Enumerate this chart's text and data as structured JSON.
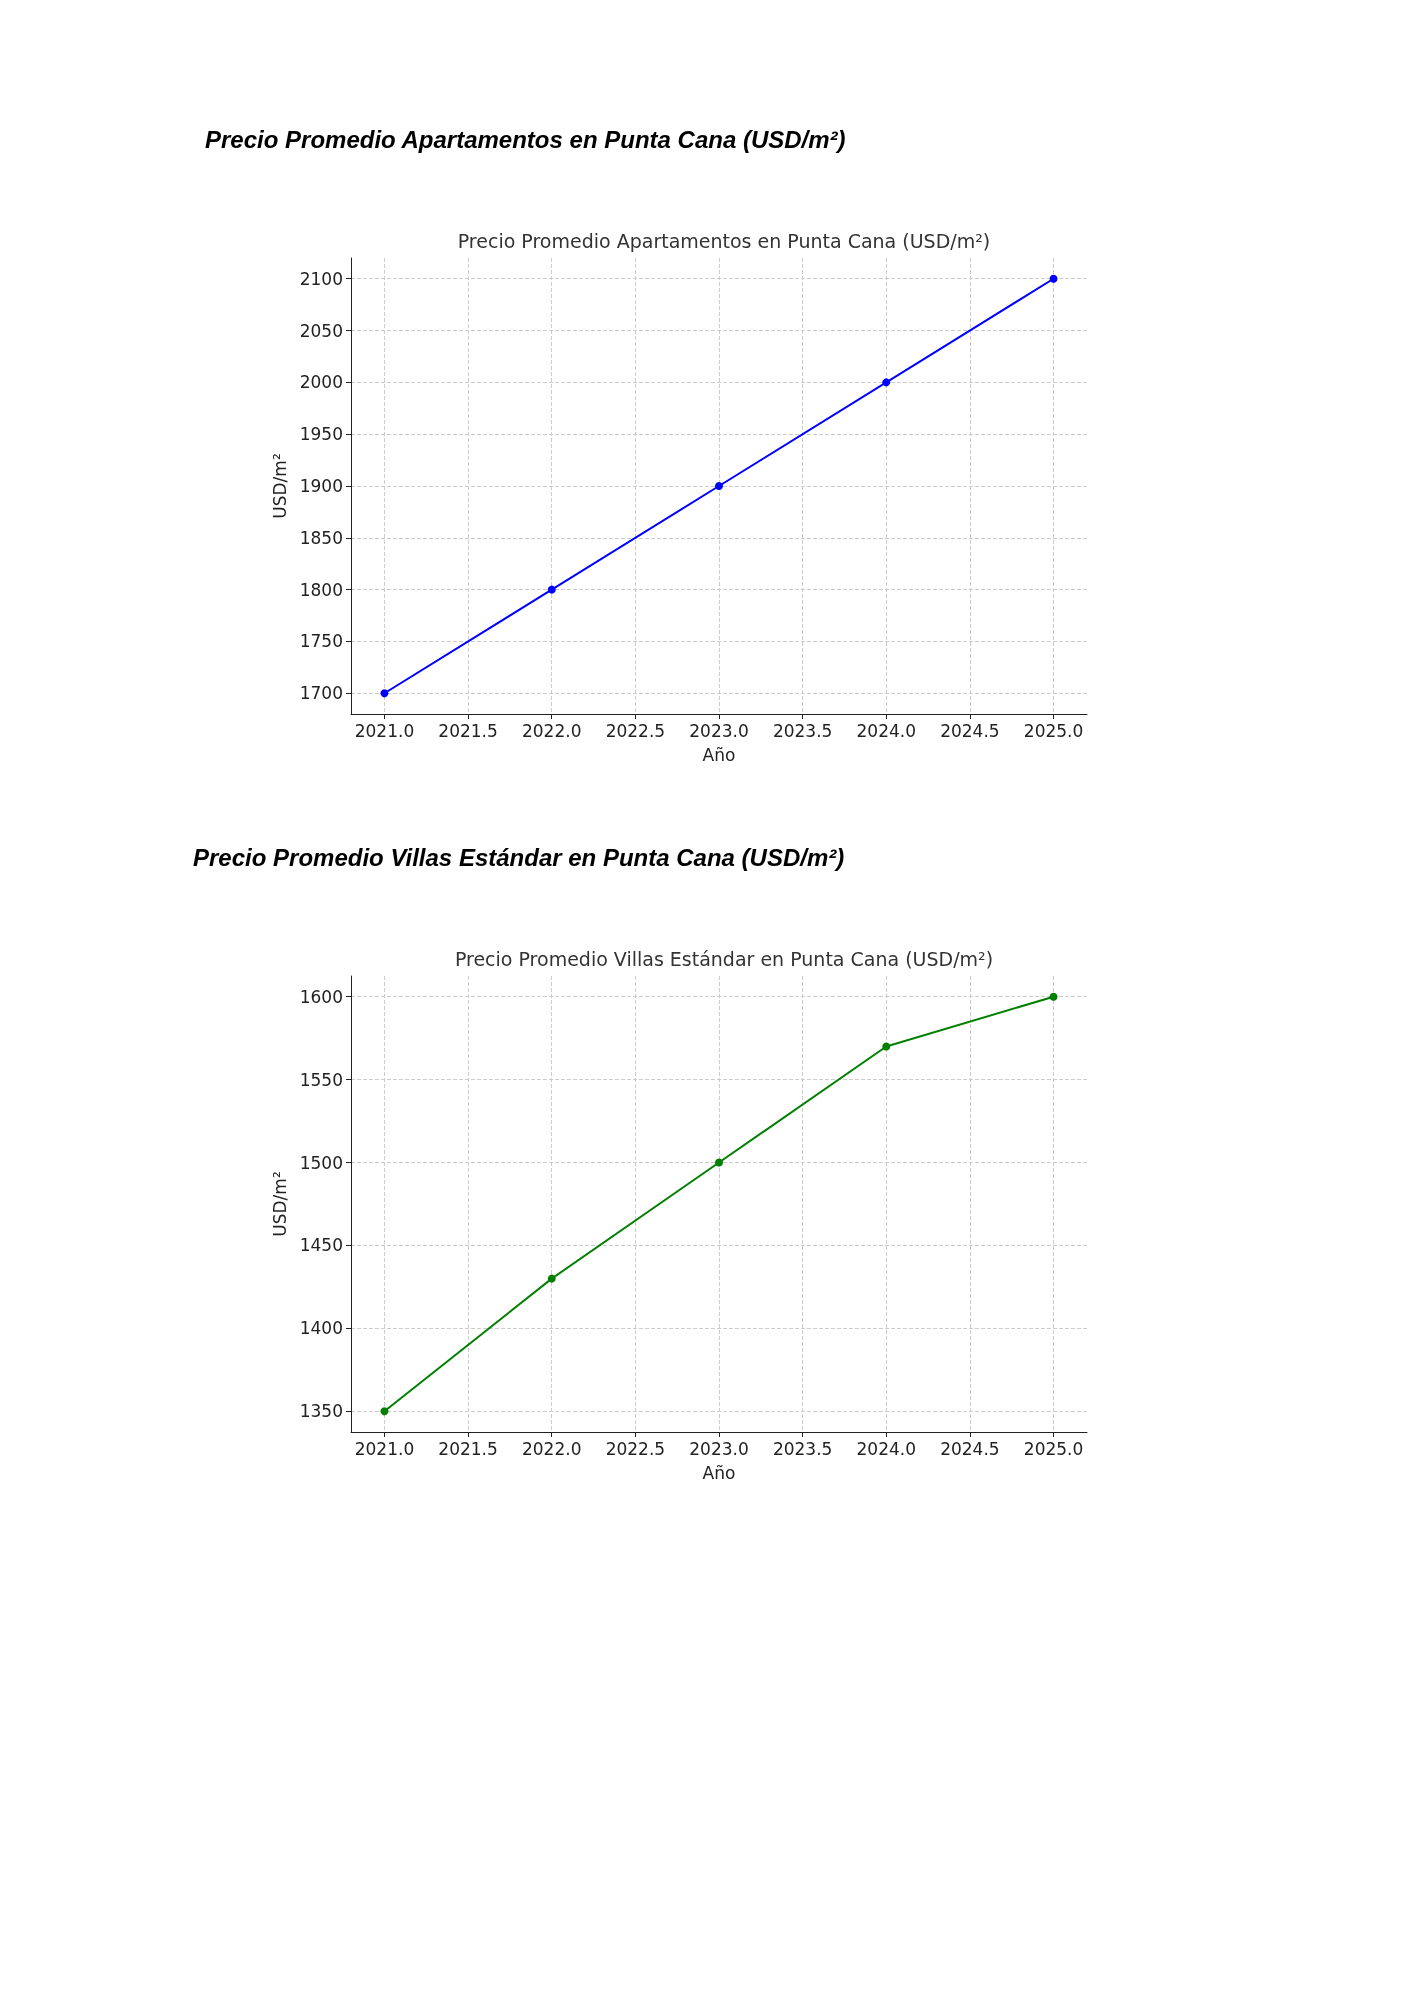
{
  "chart_data": [
    {
      "type": "line",
      "title": "Precio Promedio Apartamentos en Punta Cana (USD/m²)",
      "subtitle": "Precio Promedio Apartamentos en Punta Cana (USD/m²)",
      "xlabel": "Año",
      "ylabel": "USD/m²",
      "x": [
        2021,
        2022,
        2023,
        2024,
        2025
      ],
      "series": [
        {
          "color": "#0000ff",
          "values": [
            1700,
            1800,
            1900,
            2000,
            2100
          ]
        }
      ],
      "xlim": [
        2020.8,
        2025.2
      ],
      "xticks": [
        {
          "value": 2021,
          "label": "2021.0"
        },
        {
          "value": 2021.5,
          "label": "2021.5"
        },
        {
          "value": 2022,
          "label": "2022.0"
        },
        {
          "value": 2022.5,
          "label": "2022.5"
        },
        {
          "value": 2023,
          "label": "2023.0"
        },
        {
          "value": 2023.5,
          "label": "2023.5"
        },
        {
          "value": 2024,
          "label": "2024.0"
        },
        {
          "value": 2024.5,
          "label": "2024.5"
        },
        {
          "value": 2025,
          "label": "2025.0"
        }
      ],
      "ylim": [
        1680,
        2120
      ],
      "yticks": [
        1700,
        1750,
        1800,
        1850,
        1900,
        1950,
        2000,
        2050,
        2100
      ],
      "grid": true,
      "marker": "circle",
      "line_style": "solid"
    },
    {
      "type": "line",
      "title": "Precio Promedio Villas Estándar en Punta Cana (USD/m²)",
      "subtitle": "Precio Promedio Villas Estándar en Punta Cana (USD/m²)",
      "xlabel": "Año",
      "ylabel": "USD/m²",
      "x": [
        2021,
        2022,
        2023,
        2024,
        2025
      ],
      "series": [
        {
          "color": "#008000",
          "values": [
            1350,
            1430,
            1500,
            1570,
            1600
          ]
        }
      ],
      "xlim": [
        2020.8,
        2025.2
      ],
      "xticks": [
        {
          "value": 2021,
          "label": "2021.0"
        },
        {
          "value": 2021.5,
          "label": "2021.5"
        },
        {
          "value": 2022,
          "label": "2022.0"
        },
        {
          "value": 2022.5,
          "label": "2022.5"
        },
        {
          "value": 2023,
          "label": "2023.0"
        },
        {
          "value": 2023.5,
          "label": "2023.5"
        },
        {
          "value": 2024,
          "label": "2024.0"
        },
        {
          "value": 2024.5,
          "label": "2024.5"
        },
        {
          "value": 2025,
          "label": "2025.0"
        }
      ],
      "ylim": [
        1337.5,
        1612.5
      ],
      "yticks": [
        1350,
        1400,
        1450,
        1500,
        1550,
        1600
      ],
      "grid": true,
      "marker": "circle",
      "line_style": "solid"
    }
  ]
}
